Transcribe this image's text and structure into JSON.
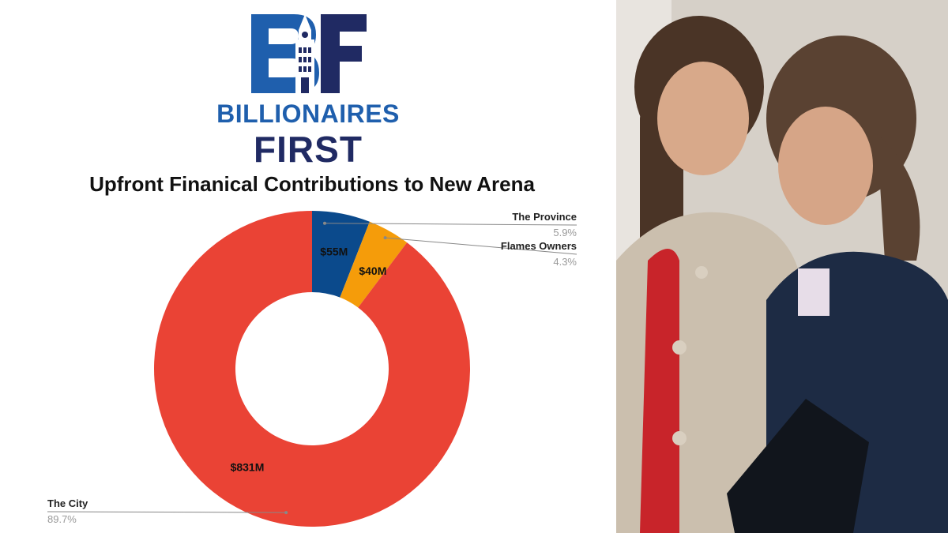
{
  "logo": {
    "line1": "BILLIONAIRES",
    "line2": "FIRST",
    "colors": {
      "blue": "#1f5fad",
      "navy": "#202a63"
    }
  },
  "photo": {
    "description_icon": "photo-of-two-people-icon"
  },
  "chart_data": {
    "type": "pie",
    "style": "donut",
    "title": "Upfront Finanical Contributions to New Arena",
    "slices": [
      {
        "label": "The Province",
        "value": 55,
        "value_label": "$55M",
        "percent_label": "5.9%",
        "color": "#0b4a8c"
      },
      {
        "label": "Flames Owners",
        "value": 40,
        "value_label": "$40M",
        "percent_label": "4.3%",
        "color": "#f59c0a"
      },
      {
        "label": "The City",
        "value": 831,
        "value_label": "$831M",
        "percent_label": "89.7%",
        "color": "#ea4335"
      }
    ],
    "legend": "none",
    "callouts": "outside-labels"
  }
}
